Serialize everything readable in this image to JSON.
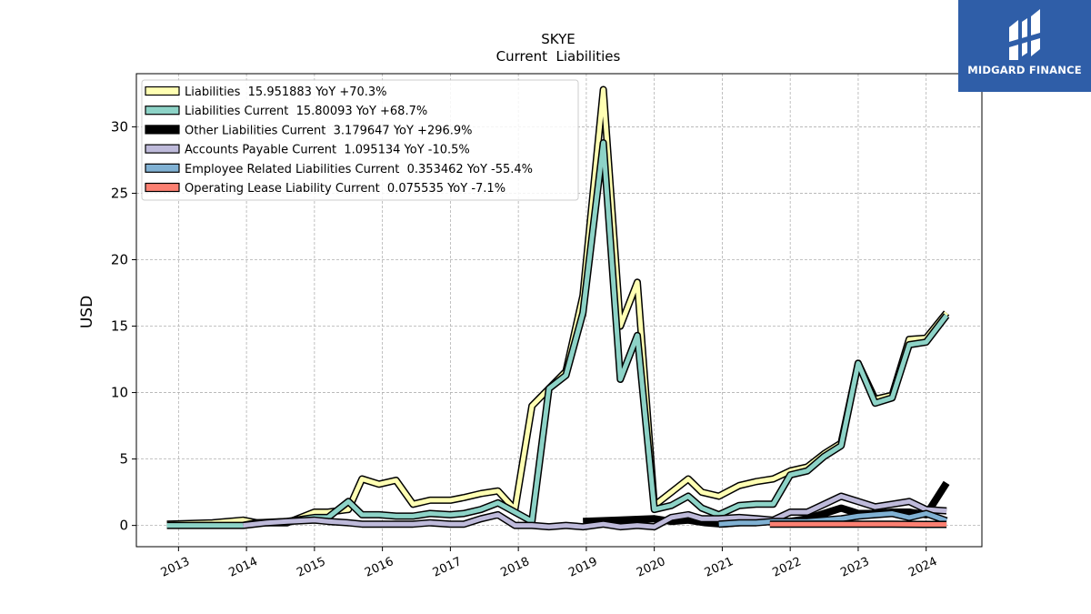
{
  "brand": {
    "name": "MIDGARD FINANCE",
    "bg_color": "#2f5ea8"
  },
  "chart_data": {
    "type": "line",
    "title": "SKYE",
    "subtitle": "Current  Liabilities",
    "ylabel": "USD",
    "xlabel": "",
    "ylim": [
      -1.6,
      34
    ],
    "xlim": [
      2012.38,
      2024.82
    ],
    "yticks": [
      0,
      5,
      10,
      15,
      20,
      25,
      30
    ],
    "xticks": [
      2013,
      2014,
      2015,
      2016,
      2017,
      2018,
      2019,
      2020,
      2021,
      2022,
      2023,
      2024
    ],
    "grid": true,
    "legend_position": "top-left",
    "series": [
      {
        "name": "Liabilities",
        "legend": "Liabilities  15.951883 YoY +70.3%",
        "color": "#ffffb3",
        "points": [
          [
            2012.83,
            0.1
          ],
          [
            2013.5,
            0.2
          ],
          [
            2013.95,
            0.4
          ],
          [
            2014.15,
            0.2
          ],
          [
            2014.6,
            0.2
          ],
          [
            2015.0,
            1.0
          ],
          [
            2015.2,
            1.0
          ],
          [
            2015.5,
            1.2
          ],
          [
            2015.7,
            3.5
          ],
          [
            2015.95,
            3.1
          ],
          [
            2016.2,
            3.4
          ],
          [
            2016.45,
            1.6
          ],
          [
            2016.7,
            1.9
          ],
          [
            2017.0,
            1.9
          ],
          [
            2017.2,
            2.1
          ],
          [
            2017.45,
            2.4
          ],
          [
            2017.7,
            2.6
          ],
          [
            2017.95,
            1.2
          ],
          [
            2018.2,
            9.0
          ],
          [
            2018.45,
            10.3
          ],
          [
            2018.7,
            11.6
          ],
          [
            2018.95,
            17.3
          ],
          [
            2019.25,
            32.8
          ],
          [
            2019.5,
            15.0
          ],
          [
            2019.75,
            18.3
          ],
          [
            2020.0,
            1.5
          ],
          [
            2020.25,
            2.5
          ],
          [
            2020.5,
            3.5
          ],
          [
            2020.7,
            2.5
          ],
          [
            2020.95,
            2.2
          ],
          [
            2021.25,
            3.0
          ],
          [
            2021.5,
            3.3
          ],
          [
            2021.75,
            3.5
          ],
          [
            2022.0,
            4.1
          ],
          [
            2022.25,
            4.4
          ],
          [
            2022.5,
            5.4
          ],
          [
            2022.75,
            6.2
          ],
          [
            2023.0,
            12.2
          ],
          [
            2023.25,
            9.5
          ],
          [
            2023.5,
            9.8
          ],
          [
            2023.75,
            14.0
          ],
          [
            2024.0,
            14.1
          ],
          [
            2024.3,
            16.0
          ]
        ]
      },
      {
        "name": "Liabilities Current",
        "legend": "Liabilities Current  15.80093 YoY +68.7%",
        "color": "#8dd3c7",
        "points": [
          [
            2012.83,
            0.0
          ],
          [
            2013.5,
            0.0
          ],
          [
            2013.95,
            0.0
          ],
          [
            2014.15,
            0.2
          ],
          [
            2014.6,
            0.3
          ],
          [
            2015.0,
            0.6
          ],
          [
            2015.2,
            0.6
          ],
          [
            2015.5,
            1.8
          ],
          [
            2015.7,
            0.8
          ],
          [
            2015.95,
            0.8
          ],
          [
            2016.2,
            0.7
          ],
          [
            2016.45,
            0.7
          ],
          [
            2016.7,
            0.9
          ],
          [
            2017.0,
            0.8
          ],
          [
            2017.2,
            0.9
          ],
          [
            2017.45,
            1.2
          ],
          [
            2017.7,
            1.7
          ],
          [
            2017.95,
            1.0
          ],
          [
            2018.2,
            0.3
          ],
          [
            2018.45,
            10.3
          ],
          [
            2018.7,
            11.3
          ],
          [
            2018.95,
            16.0
          ],
          [
            2019.25,
            28.8
          ],
          [
            2019.5,
            11.0
          ],
          [
            2019.75,
            14.3
          ],
          [
            2020.0,
            1.2
          ],
          [
            2020.25,
            1.5
          ],
          [
            2020.5,
            2.2
          ],
          [
            2020.7,
            1.3
          ],
          [
            2020.95,
            0.8
          ],
          [
            2021.25,
            1.5
          ],
          [
            2021.5,
            1.6
          ],
          [
            2021.75,
            1.6
          ],
          [
            2022.0,
            3.8
          ],
          [
            2022.25,
            4.1
          ],
          [
            2022.5,
            5.2
          ],
          [
            2022.75,
            6.0
          ],
          [
            2023.0,
            12.2
          ],
          [
            2023.25,
            9.2
          ],
          [
            2023.5,
            9.6
          ],
          [
            2023.75,
            13.6
          ],
          [
            2024.0,
            13.8
          ],
          [
            2024.3,
            15.8
          ]
        ]
      },
      {
        "name": "Other Liabilities Current",
        "legend": "Other Liabilities Current  3.179647 YoY +296.9%",
        "color": "#000000",
        "points": [
          [
            2018.95,
            0.3
          ],
          [
            2019.5,
            0.4
          ],
          [
            2020.0,
            0.5
          ],
          [
            2020.25,
            0.3
          ],
          [
            2020.5,
            0.4
          ],
          [
            2020.75,
            0.2
          ],
          [
            2021.0,
            0.1
          ],
          [
            2021.5,
            0.3
          ],
          [
            2021.75,
            0.3
          ],
          [
            2022.0,
            0.3
          ],
          [
            2022.25,
            0.5
          ],
          [
            2022.5,
            0.9
          ],
          [
            2022.75,
            1.3
          ],
          [
            2023.0,
            0.9
          ],
          [
            2023.25,
            0.9
          ],
          [
            2023.5,
            1.0
          ],
          [
            2023.75,
            1.0
          ],
          [
            2024.0,
            0.8
          ],
          [
            2024.3,
            3.2
          ]
        ]
      },
      {
        "name": "Accounts Payable Current",
        "legend": "Accounts Payable Current  1.095134 YoY -10.5%",
        "color": "#bebada",
        "points": [
          [
            2013.95,
            0.0
          ],
          [
            2014.3,
            0.2
          ],
          [
            2014.6,
            0.3
          ],
          [
            2015.0,
            0.4
          ],
          [
            2015.2,
            0.3
          ],
          [
            2015.5,
            0.2
          ],
          [
            2015.7,
            0.1
          ],
          [
            2015.95,
            0.1
          ],
          [
            2016.2,
            0.1
          ],
          [
            2016.45,
            0.1
          ],
          [
            2016.7,
            0.2
          ],
          [
            2017.0,
            0.1
          ],
          [
            2017.2,
            0.1
          ],
          [
            2017.45,
            0.5
          ],
          [
            2017.7,
            0.8
          ],
          [
            2017.95,
            0.0
          ],
          [
            2018.2,
            0.0
          ],
          [
            2018.45,
            -0.1
          ],
          [
            2018.7,
            0.0
          ],
          [
            2018.95,
            -0.1
          ],
          [
            2019.25,
            0.1
          ],
          [
            2019.5,
            -0.1
          ],
          [
            2019.75,
            0.0
          ],
          [
            2020.0,
            -0.1
          ],
          [
            2020.25,
            0.6
          ],
          [
            2020.5,
            0.8
          ],
          [
            2020.7,
            0.5
          ],
          [
            2020.95,
            0.5
          ],
          [
            2021.25,
            0.6
          ],
          [
            2021.5,
            0.5
          ],
          [
            2021.75,
            0.4
          ],
          [
            2022.0,
            1.0
          ],
          [
            2022.25,
            1.0
          ],
          [
            2022.5,
            1.6
          ],
          [
            2022.75,
            2.2
          ],
          [
            2023.0,
            1.8
          ],
          [
            2023.25,
            1.4
          ],
          [
            2023.5,
            1.6
          ],
          [
            2023.75,
            1.8
          ],
          [
            2024.0,
            1.2
          ],
          [
            2024.3,
            1.1
          ]
        ]
      },
      {
        "name": "Employee Related Liabilities Current",
        "legend": "Employee Related Liabilities Current  0.353462 YoY -55.4%",
        "color": "#80b1d3",
        "points": [
          [
            2020.95,
            0.1
          ],
          [
            2021.25,
            0.2
          ],
          [
            2021.5,
            0.2
          ],
          [
            2021.75,
            0.3
          ],
          [
            2022.0,
            0.3
          ],
          [
            2022.25,
            0.3
          ],
          [
            2022.5,
            0.4
          ],
          [
            2022.75,
            0.5
          ],
          [
            2023.0,
            0.7
          ],
          [
            2023.25,
            0.8
          ],
          [
            2023.5,
            0.9
          ],
          [
            2023.75,
            0.6
          ],
          [
            2024.0,
            0.9
          ],
          [
            2024.3,
            0.35
          ]
        ]
      },
      {
        "name": "Operating Lease Liability Current",
        "legend": "Operating Lease Liability Current  0.075535 YoY -7.1%",
        "color": "#fb8072",
        "points": [
          [
            2021.7,
            0.1
          ],
          [
            2022.0,
            0.1
          ],
          [
            2022.5,
            0.1
          ],
          [
            2023.0,
            0.1
          ],
          [
            2023.5,
            0.1
          ],
          [
            2024.0,
            0.08
          ],
          [
            2024.3,
            0.08
          ]
        ]
      }
    ]
  }
}
